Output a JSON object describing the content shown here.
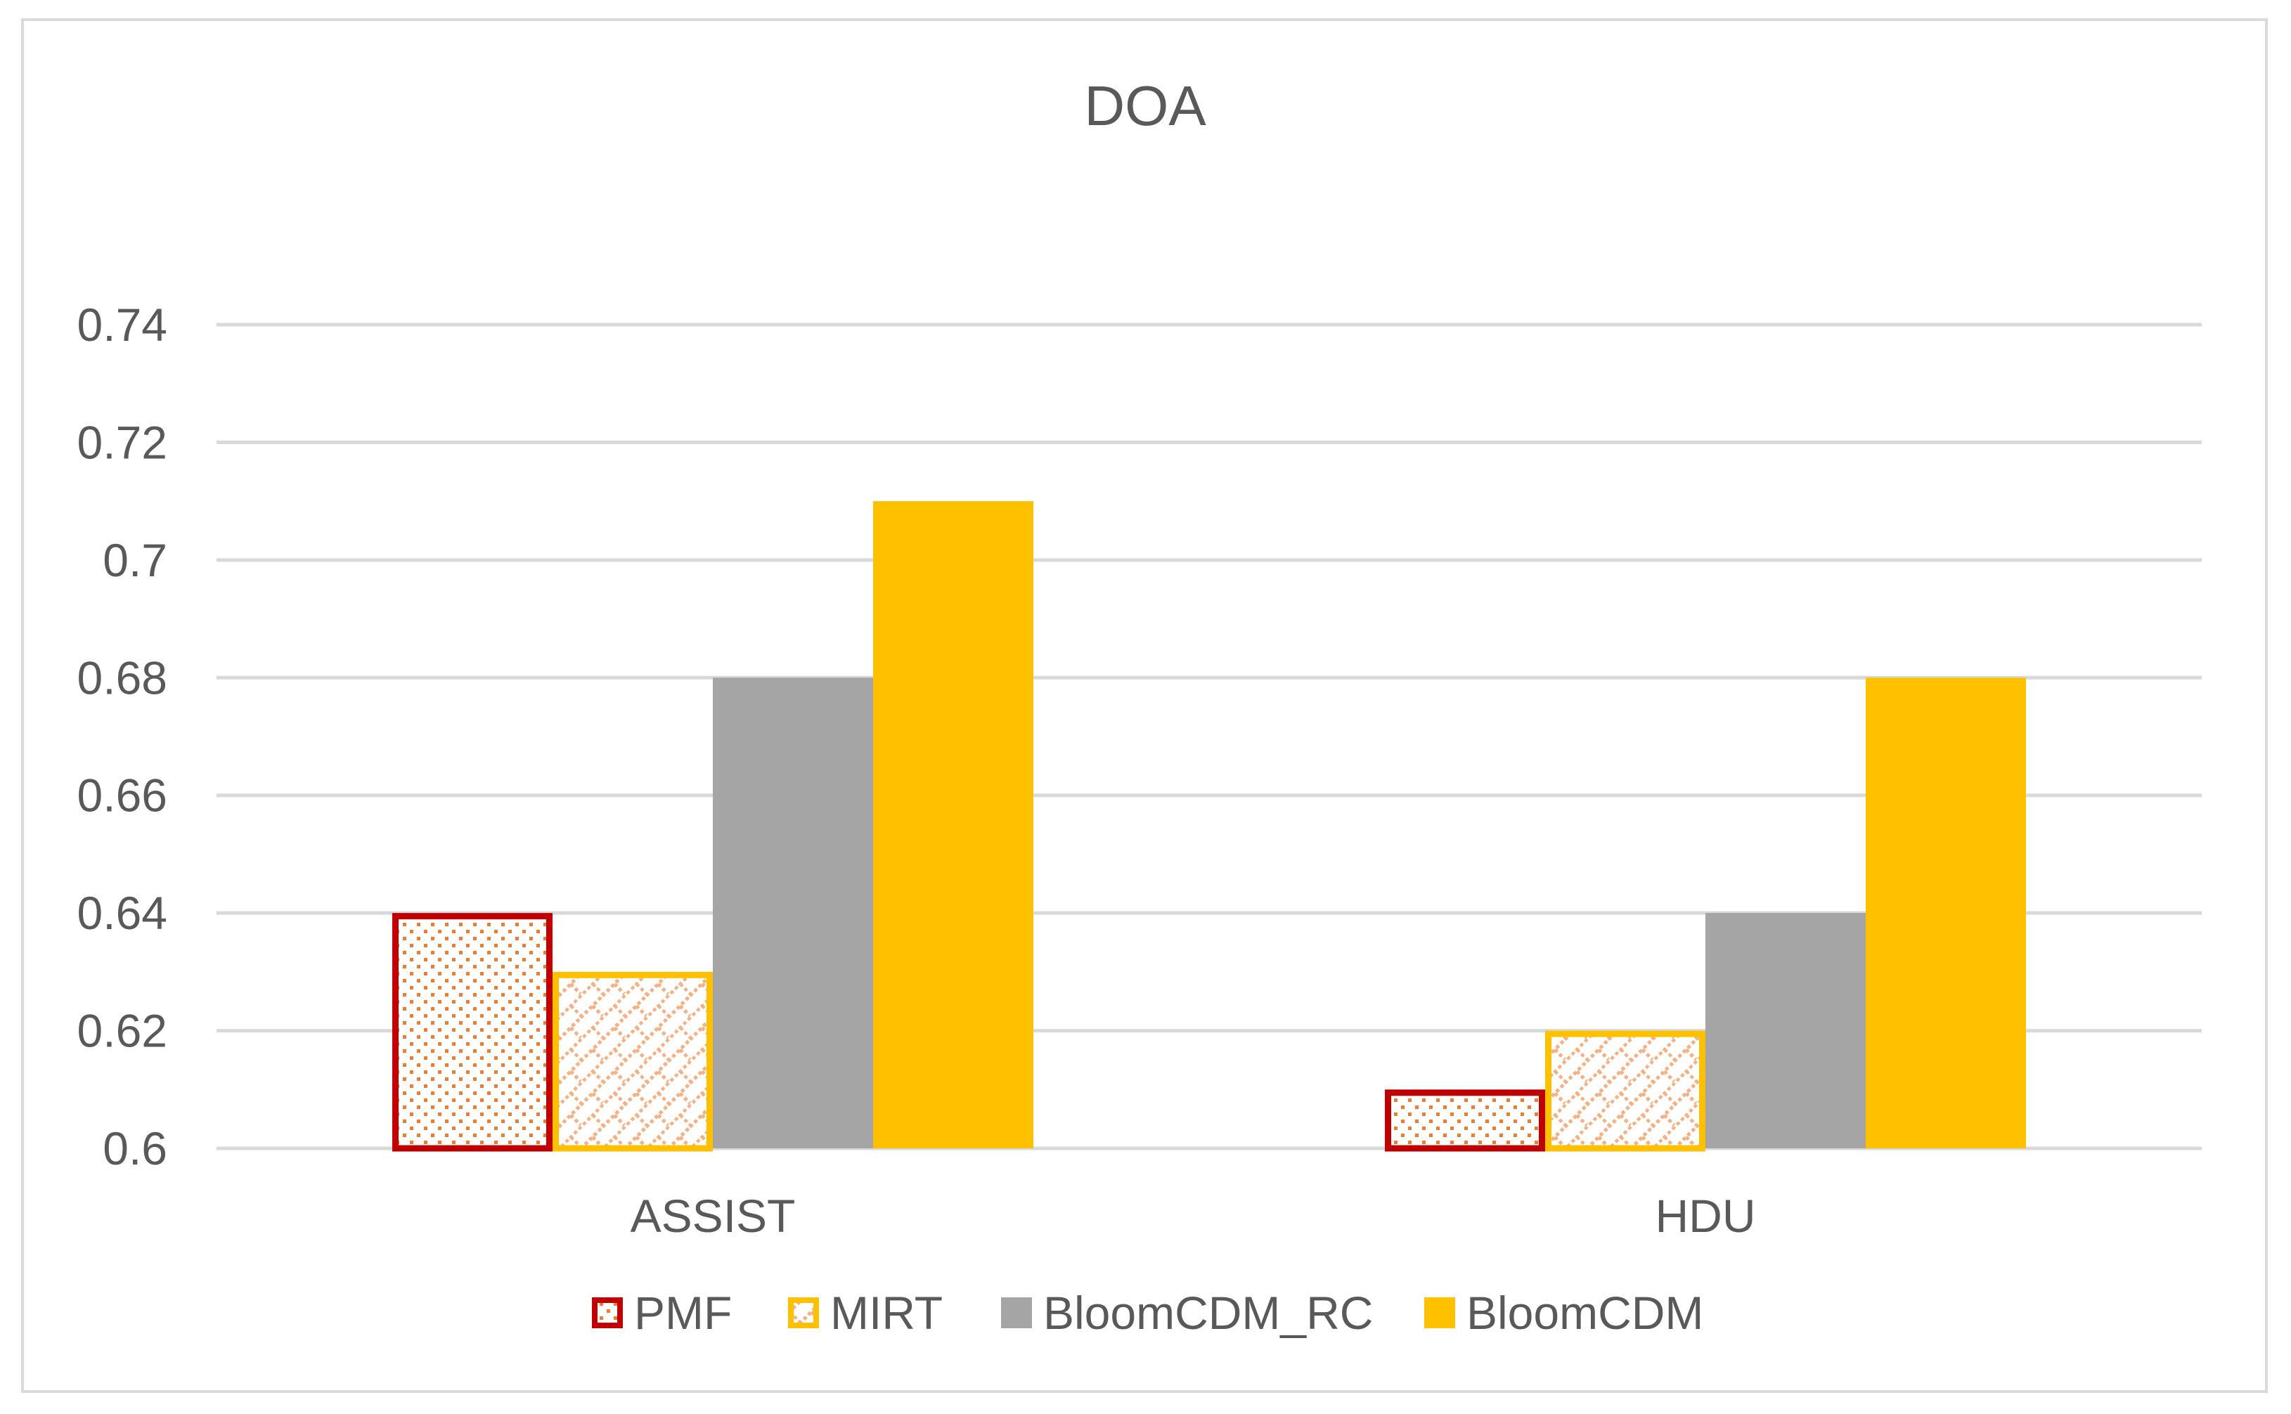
{
  "chart_data": {
    "type": "bar",
    "title": "DOA",
    "xlabel": "",
    "ylabel": "",
    "categories": [
      "ASSIST",
      "HDU"
    ],
    "ylim": [
      0.6,
      0.74
    ],
    "yticks": [
      0.6,
      0.62,
      0.64,
      0.66,
      0.68,
      0.7,
      0.72,
      0.74
    ],
    "ytick_labels": [
      "0.6",
      "0.62",
      "0.64",
      "0.66",
      "0.68",
      "0.7",
      "0.72",
      "0.74"
    ],
    "grid": true,
    "legend_position": "bottom",
    "series": [
      {
        "name": "PMF",
        "values": [
          0.64,
          0.61
        ],
        "color": "#c00000",
        "pattern": "dots",
        "pattern_color": "#ed7d31"
      },
      {
        "name": "MIRT",
        "values": [
          0.63,
          0.62
        ],
        "color": "#ffc000",
        "pattern": "diagonal-brick",
        "pattern_color": "#f4b183"
      },
      {
        "name": "BloomCDM_RC",
        "values": [
          0.68,
          0.64
        ],
        "color": "#a5a5a5",
        "pattern": "solid"
      },
      {
        "name": "BloomCDM",
        "values": [
          0.71,
          0.68
        ],
        "color": "#ffc000",
        "pattern": "solid"
      }
    ]
  }
}
